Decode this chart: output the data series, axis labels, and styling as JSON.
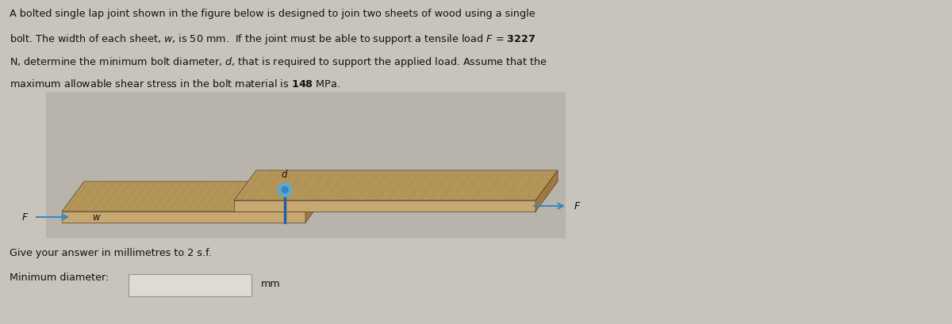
{
  "bg_color": "#c8c4bc",
  "paragraph_lines": [
    "A bolted single lap joint shown in the figure below is designed to join two sheets of wood using a single",
    "bolt. The width of each sheet, $w$, is 50 mm.  If the joint must be able to support a tensile load $F$ = $\\mathbf{3227}$",
    "N, determine the minimum bolt diameter, $d$, that is required to support the applied load. Assume that the",
    "maximum allowable shear stress in the bolt material is $\\mathbf{148}$ MPa."
  ],
  "give_answer_text": "Give your answer in millimetres to 2 s.f.",
  "min_diameter_label": "Minimum diameter:",
  "mm_label": "mm",
  "img_bg": "#b8b4ac",
  "wood_face": "#c8a870",
  "wood_side": "#a07840",
  "wood_top": "#b89858",
  "bolt_color": "#3888c0",
  "bolt_head_color": "#60a8d0",
  "arrow_color": "#3888c0",
  "text_color": "#111111",
  "line_color": "#707060",
  "input_box_color": "#dedad4",
  "input_border_color": "#999988"
}
